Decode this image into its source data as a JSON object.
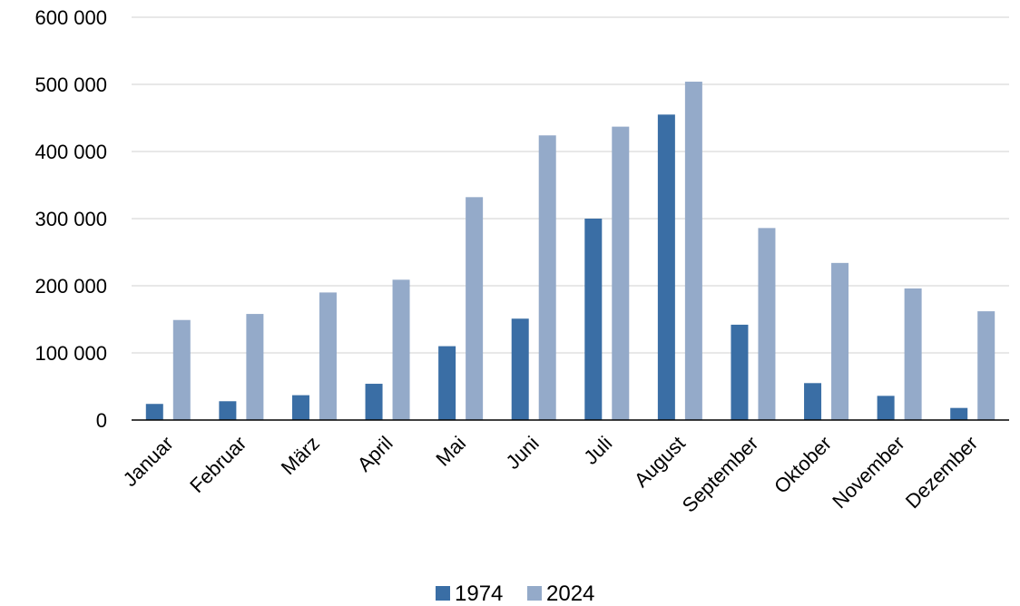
{
  "chart_data": {
    "type": "bar",
    "title": "",
    "xlabel": "",
    "ylabel": "",
    "categories": [
      "Januar",
      "Februar",
      "März",
      "April",
      "Mai",
      "Juni",
      "Juli",
      "August",
      "September",
      "Oktober",
      "November",
      "Dezember"
    ],
    "series": [
      {
        "name": "1974",
        "color": "#3a6ea5",
        "values": [
          24000,
          28000,
          37000,
          54000,
          110000,
          151000,
          300000,
          455000,
          142000,
          55000,
          36000,
          18000
        ]
      },
      {
        "name": "2024",
        "color": "#94aac9",
        "values": [
          149000,
          158000,
          190000,
          209000,
          332000,
          424000,
          437000,
          504000,
          286000,
          234000,
          196000,
          162000
        ]
      }
    ],
    "ylim": [
      0,
      600000
    ],
    "yticks": [
      0,
      100000,
      200000,
      300000,
      400000,
      500000,
      600000
    ],
    "ytick_labels": [
      "0",
      "100 000",
      "200 000",
      "300 000",
      "400 000",
      "500 000",
      "600 000"
    ],
    "grid": true,
    "legend_position": "bottom"
  }
}
